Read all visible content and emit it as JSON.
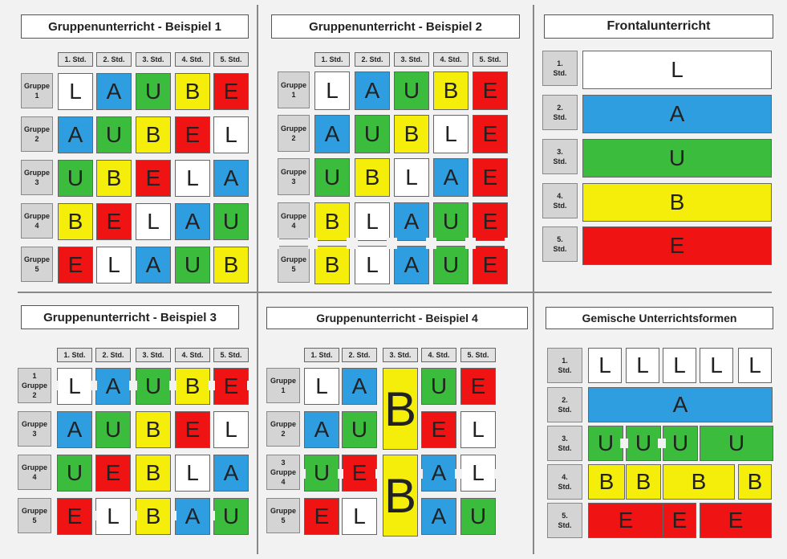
{
  "colors": {
    "L": "#ffffff",
    "A": "#2e9ee0",
    "U": "#3cbc3c",
    "B": "#f4ee0a",
    "E": "#ef1313"
  },
  "hours": [
    "1. Std.",
    "2. Std.",
    "3. Std.",
    "4. Std.",
    "5. Std."
  ],
  "panel1": {
    "title": "Gruppenunterricht - Beispiel 1",
    "rows": [
      {
        "label": "Gruppe\n1",
        "cells": [
          "L",
          "A",
          "U",
          "B",
          "E"
        ]
      },
      {
        "label": "Gruppe\n2",
        "cells": [
          "A",
          "U",
          "B",
          "E",
          "L"
        ]
      },
      {
        "label": "Gruppe\n3",
        "cells": [
          "U",
          "B",
          "E",
          "L",
          "A"
        ]
      },
      {
        "label": "Gruppe\n4",
        "cells": [
          "B",
          "E",
          "L",
          "A",
          "U"
        ]
      },
      {
        "label": "Gruppe\n5",
        "cells": [
          "E",
          "L",
          "A",
          "U",
          "B"
        ]
      }
    ]
  },
  "panel2": {
    "title": "Gruppenunterricht - Beispiel 2",
    "rows": [
      {
        "label": "Gruppe\n1",
        "cells": [
          "L",
          "A",
          "U",
          "B",
          "E"
        ]
      },
      {
        "label": "Gruppe\n2",
        "cells": [
          "A",
          "U",
          "B",
          "L",
          "E"
        ]
      },
      {
        "label": "Gruppe\n3",
        "cells": [
          "U",
          "B",
          "L",
          "A",
          "E"
        ]
      },
      {
        "label": "Gruppe\n4",
        "cells": [
          "B",
          "L",
          "A",
          "U",
          "E"
        ]
      },
      {
        "label": "Gruppe\n5",
        "cells": [
          "B",
          "L",
          "A",
          "U",
          "E"
        ]
      }
    ]
  },
  "panel3": {
    "title": "Frontalunterricht",
    "rows": [
      {
        "label": "1.\nStd.",
        "cell": "L"
      },
      {
        "label": "2.\nStd.",
        "cell": "A"
      },
      {
        "label": "3.\nStd.",
        "cell": "U"
      },
      {
        "label": "4.\nStd.",
        "cell": "B"
      },
      {
        "label": "5.\nStd.",
        "cell": "E"
      }
    ]
  },
  "panel4": {
    "title": "Gruppenunterricht - Beispiel 3",
    "rows": [
      {
        "label": "1\nGruppe\n2",
        "cells": [
          "L",
          "A",
          "U",
          "B",
          "E"
        ]
      },
      {
        "label": "Gruppe\n3",
        "cells": [
          "A",
          "U",
          "B",
          "E",
          "L"
        ]
      },
      {
        "label": "Gruppe\n4",
        "cells": [
          "U",
          "E",
          "B",
          "L",
          "A"
        ]
      },
      {
        "label": "Gruppe\n5",
        "cells": [
          "E",
          "L",
          "B",
          "A",
          "U"
        ]
      }
    ]
  },
  "panel5": {
    "title": "Gruppenunterricht - Beispiel 4",
    "labels": [
      "Gruppe\n1",
      "Gruppe\n2",
      "3\nGruppe\n4",
      "Gruppe\n5"
    ],
    "rows": [
      [
        "L",
        "A",
        null,
        "U",
        "E"
      ],
      [
        "A",
        "U",
        null,
        "E",
        "L"
      ],
      [
        "U",
        "E",
        null,
        "A",
        "L"
      ],
      [
        "E",
        "L",
        null,
        "A",
        "U"
      ]
    ],
    "bigB": "B"
  },
  "panel6": {
    "title": "Gemische Unterrichtsformen",
    "rows": [
      {
        "label": "1.\nStd.",
        "cells": [
          "L",
          "L",
          "L",
          "L",
          "L"
        ]
      },
      {
        "label": "2.\nStd.",
        "cells": [
          "A"
        ]
      },
      {
        "label": "3.\nStd.",
        "cells": [
          "U",
          "U",
          "U",
          "U"
        ]
      },
      {
        "label": "4.\nStd.",
        "cells": [
          "B",
          "B",
          "B",
          "B"
        ]
      },
      {
        "label": "5.\nStd.",
        "cells": [
          "E",
          "E",
          "E"
        ]
      }
    ]
  }
}
